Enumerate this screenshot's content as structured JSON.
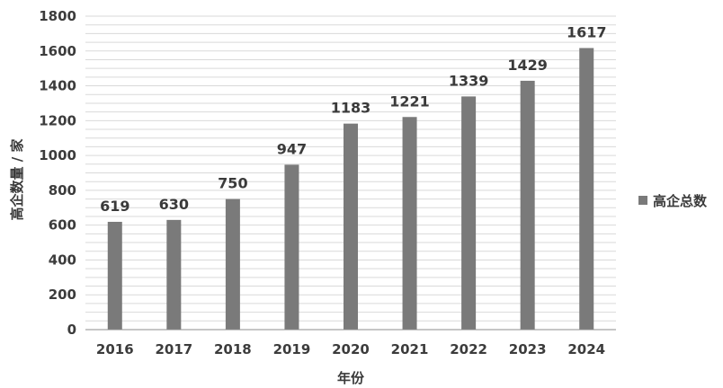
{
  "chart_data": {
    "type": "bar",
    "categories": [
      "2016",
      "2017",
      "2018",
      "2019",
      "2020",
      "2021",
      "2022",
      "2023",
      "2024"
    ],
    "series": [
      {
        "name": "高企总数",
        "values": [
          619,
          630,
          750,
          947,
          1183,
          1221,
          1339,
          1429,
          1617
        ],
        "color": "#7a7a7a"
      }
    ],
    "title": "",
    "xlabel": "年份",
    "ylabel": "高企数量 / 家",
    "ylim": [
      0,
      1800
    ],
    "yticks": [
      0,
      200,
      400,
      600,
      800,
      1000,
      1200,
      1400,
      1600,
      1800
    ],
    "grid": true,
    "legend_position": "right"
  }
}
